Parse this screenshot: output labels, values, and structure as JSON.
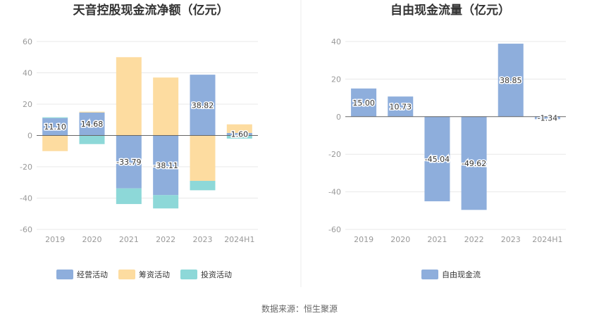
{
  "source_text": "数据来源：恒生聚源",
  "chart_data": [
    {
      "type": "bar",
      "stacked": true,
      "title": "天音控股现金流净额（亿元）",
      "categories": [
        "2019",
        "2020",
        "2021",
        "2022",
        "2023",
        "2024H1"
      ],
      "ylim": [
        -60,
        60
      ],
      "yticks": [
        60,
        40,
        20,
        0,
        -20,
        -40,
        -60
      ],
      "grid": true,
      "legend_position": "bottom",
      "series": [
        {
          "name": "经营活动",
          "color": "#8eaedc",
          "values": [
            11.1,
            14.68,
            -33.79,
            -38.11,
            38.82,
            1.6
          ]
        },
        {
          "name": "筹资活动",
          "color": "#fddca0",
          "values": [
            -10.0,
            0.5,
            50.0,
            37.0,
            -29.0,
            5.5
          ]
        },
        {
          "name": "投资活动",
          "color": "#8dd8d8",
          "values": [
            0.5,
            -5.5,
            -10.0,
            -8.5,
            -6.0,
            -2.0
          ]
        }
      ],
      "data_labels": [
        {
          "category": "2019",
          "text": "11.10"
        },
        {
          "category": "2020",
          "text": "14.68"
        },
        {
          "category": "2021",
          "text": "-33.79"
        },
        {
          "category": "2022",
          "text": "-38.11"
        },
        {
          "category": "2023",
          "text": "38.82"
        },
        {
          "category": "2024H1",
          "text": "1.60"
        }
      ]
    },
    {
      "type": "bar",
      "title": "自由现金流量（亿元）",
      "categories": [
        "2019",
        "2020",
        "2021",
        "2022",
        "2023",
        "2024H1"
      ],
      "ylim": [
        -60,
        40
      ],
      "yticks": [
        40,
        20,
        0,
        -20,
        -40,
        -60
      ],
      "grid": true,
      "legend_position": "bottom",
      "series": [
        {
          "name": "自由现金流",
          "color": "#8eaedc",
          "values": [
            15.0,
            10.73,
            -45.04,
            -49.62,
            38.85,
            -1.34
          ]
        }
      ],
      "data_labels": [
        {
          "category": "2019",
          "text": "15.00"
        },
        {
          "category": "2020",
          "text": "10.73"
        },
        {
          "category": "2021",
          "text": "-45.04"
        },
        {
          "category": "2022",
          "text": "-49.62"
        },
        {
          "category": "2023",
          "text": "38.85"
        },
        {
          "category": "2024H1",
          "text": "-1.34"
        }
      ]
    }
  ]
}
